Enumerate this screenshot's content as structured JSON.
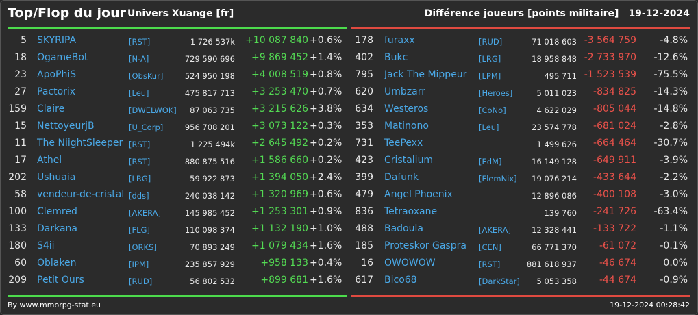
{
  "header": {
    "title": "Top/Flop du jour",
    "universe": "Univers Xuange [fr]",
    "metric": "Différence joueurs [points militaire]",
    "date": "19-12-2024"
  },
  "colors": {
    "positive": "#53d953",
    "negative": "#e9514a",
    "link": "#4aa8e6",
    "top_bar": "#4cdb4c",
    "flop_bar": "#e04a40"
  },
  "top": [
    {
      "rank": "5",
      "name": "SKYRIPA",
      "ally": "[RST]",
      "points": "1 726 537k",
      "diff": "+10 087 840",
      "pct": "+0.6%"
    },
    {
      "rank": "18",
      "name": "OgameBot",
      "ally": "[N-A]",
      "points": "729 590 696",
      "diff": "+9 869 452",
      "pct": "+1.4%"
    },
    {
      "rank": "23",
      "name": "ApoPhiS",
      "ally": "[ObsKur]",
      "points": "524 950 198",
      "diff": "+4 008 519",
      "pct": "+0.8%"
    },
    {
      "rank": "27",
      "name": "Pactorix",
      "ally": "[Leu]",
      "points": "475 817 713",
      "diff": "+3 253 470",
      "pct": "+0.7%"
    },
    {
      "rank": "159",
      "name": "Claire",
      "ally": "[DWELWOK]",
      "points": "87 063 735",
      "diff": "+3 215 626",
      "pct": "+3.8%"
    },
    {
      "rank": "15",
      "name": "NettoyeurjB",
      "ally": "[U_Corp]",
      "points": "956 708 201",
      "diff": "+3 073 122",
      "pct": "+0.3%"
    },
    {
      "rank": "11",
      "name": "The NiightSleeper",
      "ally": "[RST]",
      "points": "1 225 494k",
      "diff": "+2 645 492",
      "pct": "+0.2%"
    },
    {
      "rank": "17",
      "name": "Athel",
      "ally": "[RST]",
      "points": "880 875 516",
      "diff": "+1 586 660",
      "pct": "+0.2%"
    },
    {
      "rank": "202",
      "name": "Ushuaia",
      "ally": "[LRG]",
      "points": "59 922 873",
      "diff": "+1 394 050",
      "pct": "+2.4%"
    },
    {
      "rank": "58",
      "name": "vendeur-de-cristal",
      "ally": "[dds]",
      "points": "240 038 142",
      "diff": "+1 320 969",
      "pct": "+0.6%"
    },
    {
      "rank": "100",
      "name": "Clemred",
      "ally": "[AKERA]",
      "points": "145 985 452",
      "diff": "+1 253 301",
      "pct": "+0.9%"
    },
    {
      "rank": "133",
      "name": "Darkana",
      "ally": "[FLG]",
      "points": "110 098 374",
      "diff": "+1 132 190",
      "pct": "+1.0%"
    },
    {
      "rank": "180",
      "name": "S4ii",
      "ally": "[ORKS]",
      "points": "70 893 249",
      "diff": "+1 079 434",
      "pct": "+1.6%"
    },
    {
      "rank": "60",
      "name": "Oblaken",
      "ally": "[IPM]",
      "points": "235 857 929",
      "diff": "+958 133",
      "pct": "+0.4%"
    },
    {
      "rank": "209",
      "name": "Petit Ours",
      "ally": "[RUD]",
      "points": "56 802 532",
      "diff": "+899 681",
      "pct": "+1.6%"
    }
  ],
  "flop": [
    {
      "rank": "178",
      "name": "furaxx",
      "ally": "[RUD]",
      "points": "71 018 603",
      "diff": "-3 564 759",
      "pct": "-4.8%"
    },
    {
      "rank": "402",
      "name": "Bukc",
      "ally": "[LRG]",
      "points": "18 958 848",
      "diff": "-2 733 970",
      "pct": "-12.6%"
    },
    {
      "rank": "795",
      "name": "Jack The Mippeur",
      "ally": "[LPM]",
      "points": "495 711",
      "diff": "-1 523 539",
      "pct": "-75.5%"
    },
    {
      "rank": "620",
      "name": "Umbzarr",
      "ally": "[Heroes]",
      "points": "5 011 023",
      "diff": "-834 825",
      "pct": "-14.3%"
    },
    {
      "rank": "634",
      "name": "Westeros",
      "ally": "[CoNo]",
      "points": "4 622 029",
      "diff": "-805 044",
      "pct": "-14.8%"
    },
    {
      "rank": "353",
      "name": "Matinono",
      "ally": "[Leu]",
      "points": "23 574 778",
      "diff": "-681 024",
      "pct": "-2.8%"
    },
    {
      "rank": "731",
      "name": "TeePexx",
      "ally": "",
      "points": "1 499 626",
      "diff": "-664 464",
      "pct": "-30.7%"
    },
    {
      "rank": "423",
      "name": "Cristalium",
      "ally": "[EdM]",
      "points": "16 149 128",
      "diff": "-649 911",
      "pct": "-3.9%"
    },
    {
      "rank": "399",
      "name": "Dafunk",
      "ally": "[FlemNix]",
      "points": "19 076 214",
      "diff": "-433 644",
      "pct": "-2.2%"
    },
    {
      "rank": "479",
      "name": "Angel Phoenix",
      "ally": "",
      "points": "12 896 086",
      "diff": "-400 108",
      "pct": "-3.0%"
    },
    {
      "rank": "836",
      "name": "Tetraoxane",
      "ally": "",
      "points": "139 760",
      "diff": "-241 726",
      "pct": "-63.4%"
    },
    {
      "rank": "488",
      "name": "Badoula",
      "ally": "[AKERA]",
      "points": "12 328 441",
      "diff": "-133 722",
      "pct": "-1.1%"
    },
    {
      "rank": "185",
      "name": "Proteskor Gaspra",
      "ally": "[CEN]",
      "points": "66 771 370",
      "diff": "-61 072",
      "pct": "-0.1%"
    },
    {
      "rank": "16",
      "name": "OWOWOW",
      "ally": "[RST]",
      "points": "881 618 937",
      "diff": "-46 674",
      "pct": "0.0%"
    },
    {
      "rank": "617",
      "name": "Bico68",
      "ally": "[DarkStar]",
      "points": "5 053 358",
      "diff": "-44 674",
      "pct": "-0.9%"
    }
  ],
  "footer": {
    "credit": "By www.mmorpg-stat.eu",
    "timestamp": "19-12-2024 00:28:42"
  }
}
